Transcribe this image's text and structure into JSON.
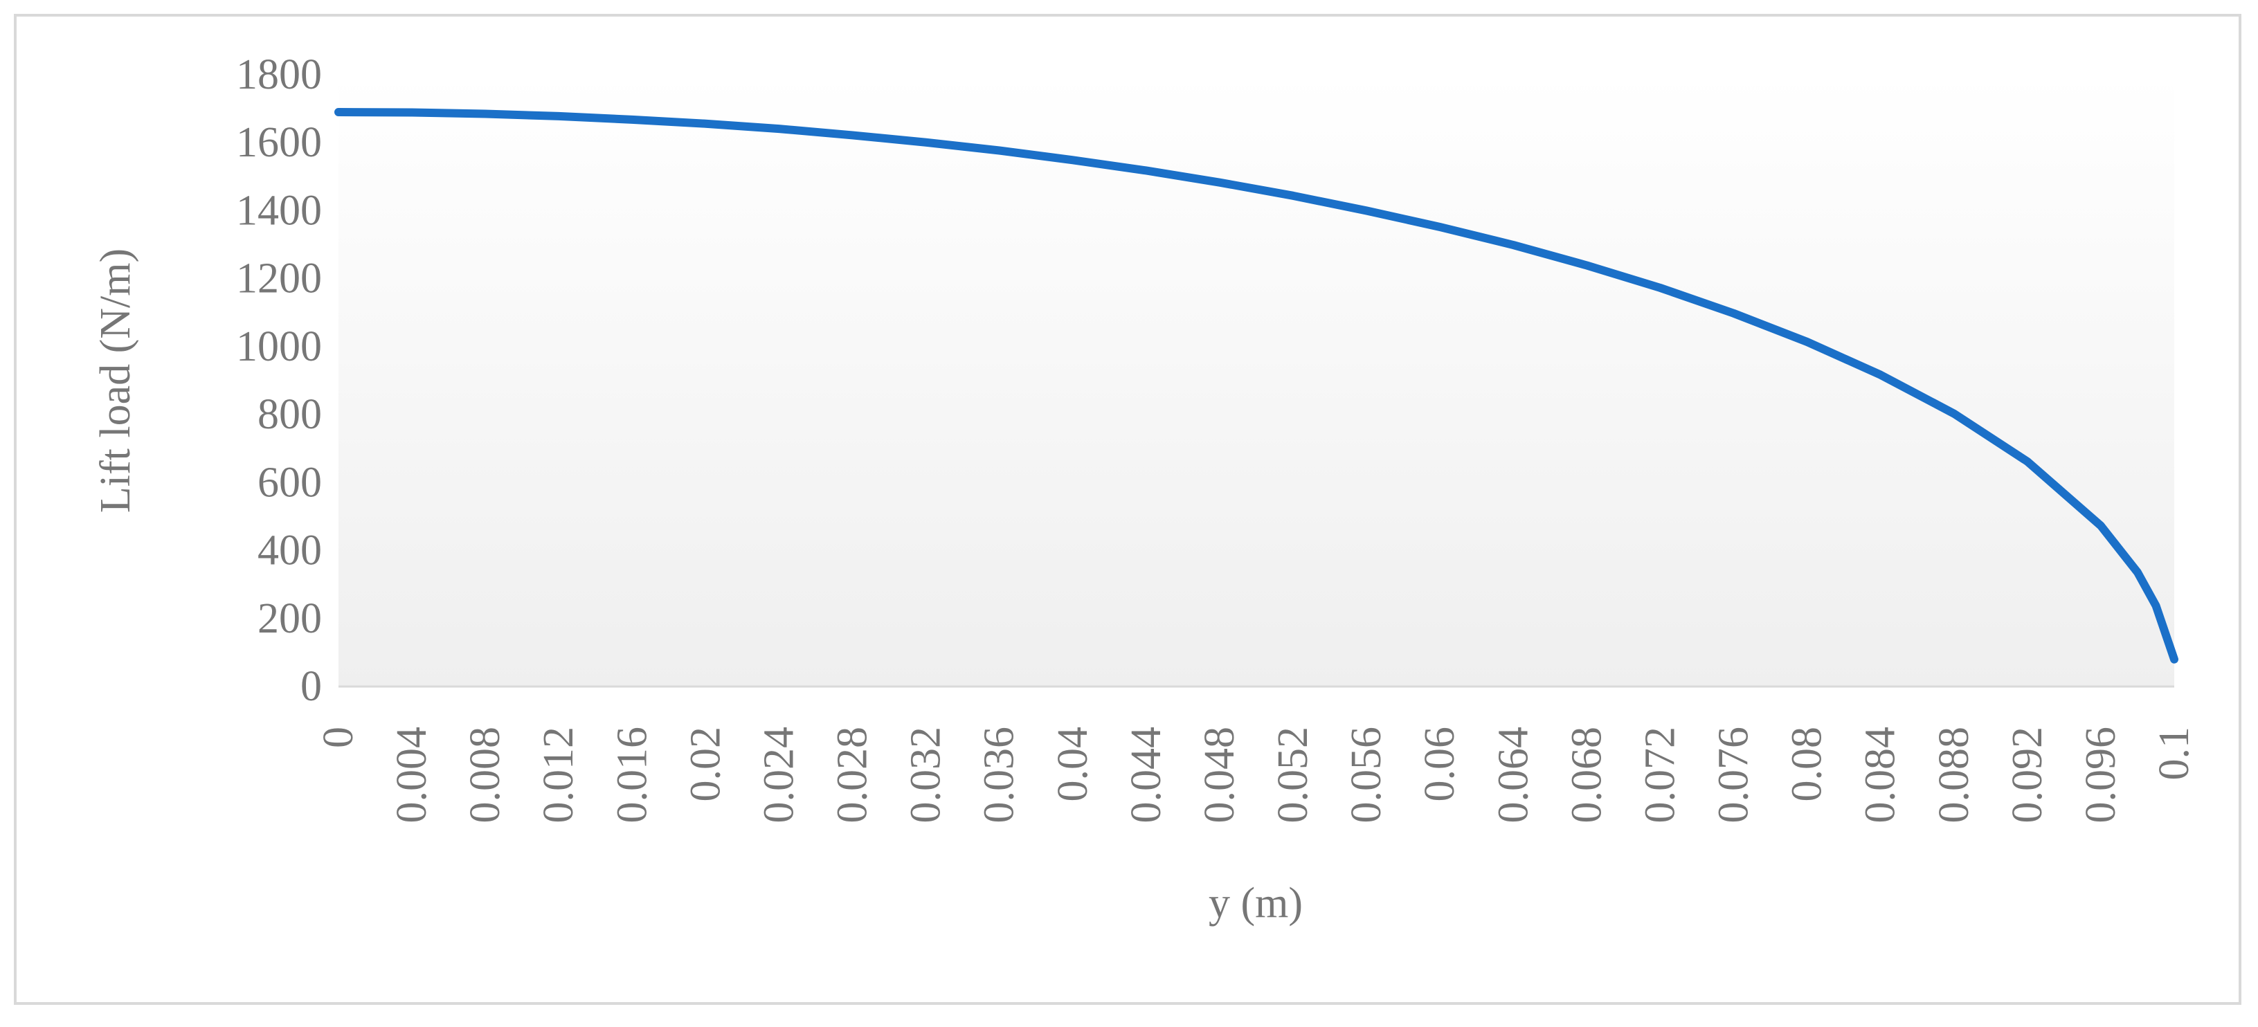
{
  "chart_data": {
    "type": "line",
    "x_label": "y (m)",
    "y_label": "Lift load  (N/m)",
    "x": [
      0,
      0.004,
      0.008,
      0.012,
      0.016,
      0.02,
      0.024,
      0.028,
      0.032,
      0.036,
      0.04,
      0.044,
      0.048,
      0.052,
      0.056,
      0.06,
      0.064,
      0.068,
      0.072,
      0.076,
      0.08,
      0.084,
      0.088,
      0.092,
      0.096,
      0.098,
      0.099,
      0.1
    ],
    "series": [
      {
        "color": "#1b70c8",
        "values": [
          1690,
          1689,
          1685,
          1678,
          1668,
          1656,
          1641,
          1622,
          1601,
          1577,
          1549,
          1518,
          1483,
          1444,
          1400,
          1352,
          1299,
          1239,
          1173,
          1098,
          1014,
          917,
          803,
          662,
          473,
          336,
          238,
          80
        ]
      }
    ],
    "xlim": [
      0,
      0.1
    ],
    "xticks": [
      0,
      0.004,
      0.008,
      0.012,
      0.016,
      0.02,
      0.024,
      0.028,
      0.032,
      0.036,
      0.04,
      0.044,
      0.048,
      0.052,
      0.056,
      0.06,
      0.064,
      0.068,
      0.072,
      0.076,
      0.08,
      0.084,
      0.088,
      0.092,
      0.096,
      0.1
    ],
    "ylim": [
      0,
      1800
    ],
    "yticks": [
      0,
      200,
      400,
      600,
      800,
      1000,
      1200,
      1400,
      1600,
      1800
    ],
    "grid": false
  }
}
